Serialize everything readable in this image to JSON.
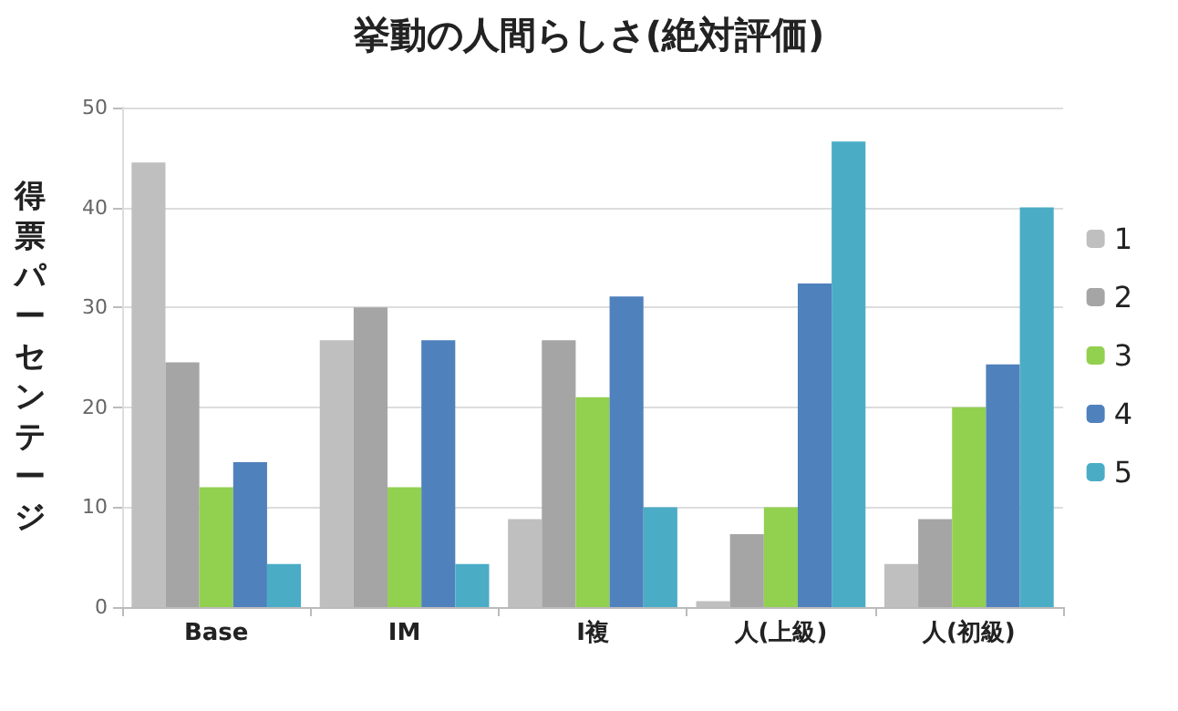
{
  "chart_data": {
    "type": "bar",
    "title": "挙動の人間らしさ(絶対評価)",
    "ylabel": "得票パーセンテージ",
    "categories": [
      "Base",
      "IM",
      "I複",
      "人(上級)",
      "人(初級)"
    ],
    "series": [
      {
        "name": "1",
        "color": "#bfbfbf",
        "values": [
          44.5,
          26.7,
          8.8,
          0.6,
          4.3
        ]
      },
      {
        "name": "2",
        "color": "#a5a5a5",
        "values": [
          24.5,
          30,
          26.7,
          7.3,
          8.8
        ]
      },
      {
        "name": "3",
        "color": "#92d050",
        "values": [
          12,
          12,
          21,
          10,
          20
        ]
      },
      {
        "name": "4",
        "color": "#4f81bd",
        "values": [
          14.5,
          26.7,
          31.1,
          32.4,
          24.3
        ]
      },
      {
        "name": "5",
        "color": "#4bacc6",
        "values": [
          4.3,
          4.3,
          10,
          46.6,
          40
        ]
      }
    ],
    "ylim": [
      0,
      50
    ],
    "yticks": [
      0,
      10,
      20,
      30,
      40,
      50
    ],
    "grid": "y",
    "legend": "right"
  }
}
